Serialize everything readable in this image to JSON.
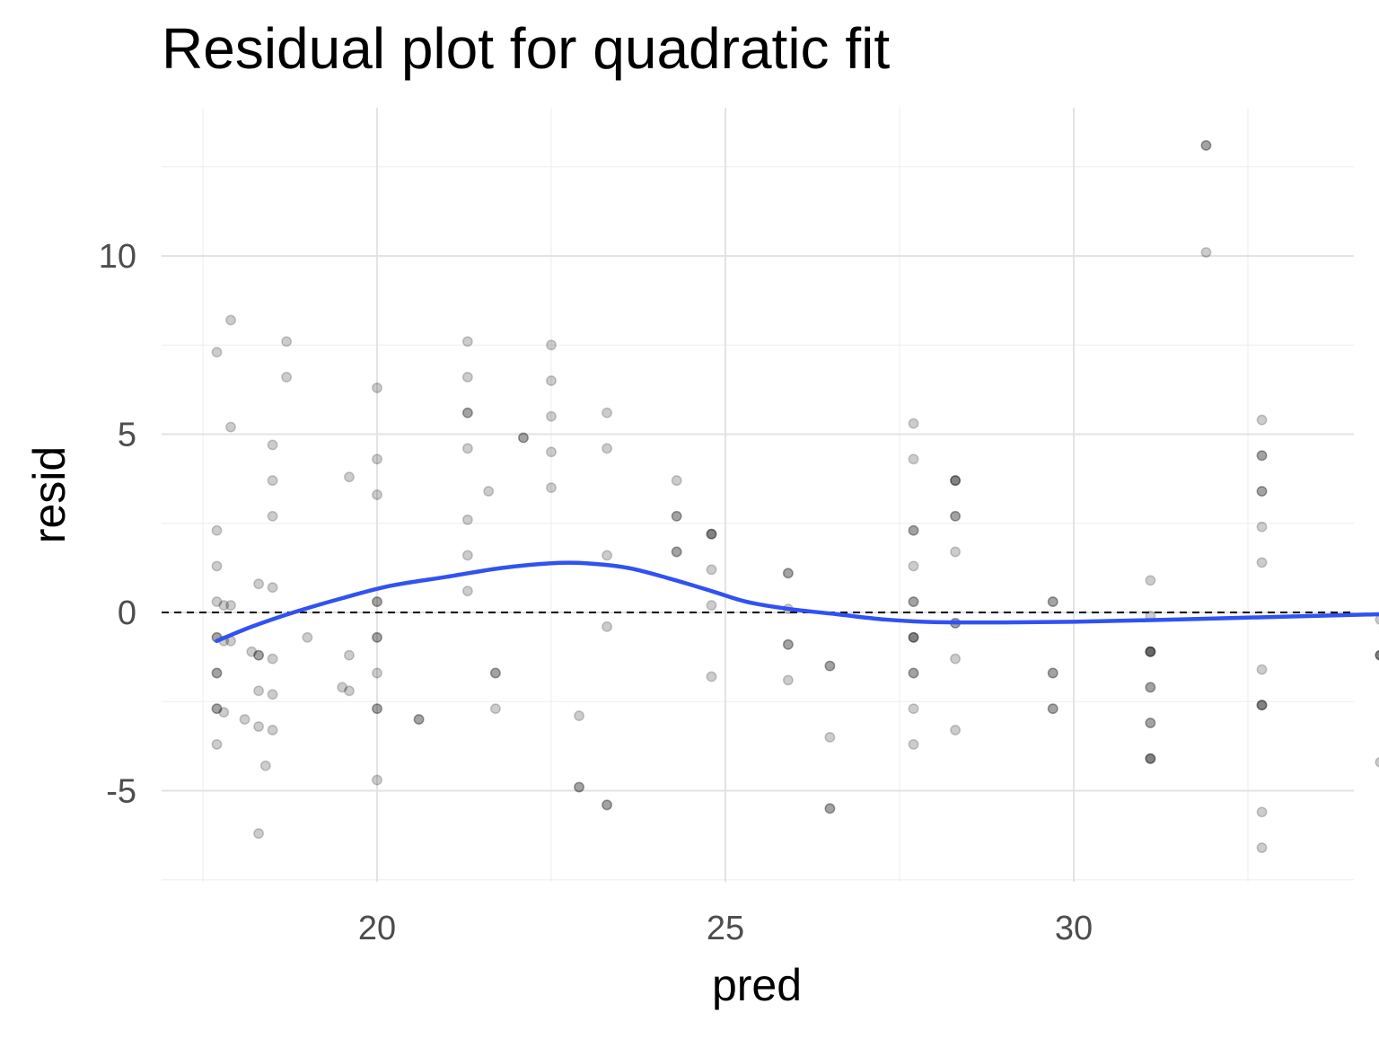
{
  "chart_data": {
    "type": "scatter",
    "title": "Residual plot for quadratic fit",
    "xlabel": "pred",
    "ylabel": "resid",
    "xlim": [
      16.9,
      34.0
    ],
    "ylim": [
      -7.5,
      14.0
    ],
    "x_ticks": [
      20,
      25,
      30
    ],
    "x_tick_labels": [
      "20",
      "25",
      "30"
    ],
    "y_ticks": [
      -5,
      0,
      5,
      10
    ],
    "y_tick_labels": [
      "-5",
      "0",
      "5",
      "10"
    ],
    "x_minor_ticks": [
      17.5,
      22.5,
      27.5,
      32.5
    ],
    "y_minor_ticks": [
      -7.5,
      -2.5,
      2.5,
      7.5,
      12.5
    ],
    "grid": true,
    "reference_line": {
      "y": 0,
      "style": "dashed",
      "color": "#000000"
    },
    "point_color": "#000000",
    "point_alpha": 0.2,
    "smooth_color": "#3152F2",
    "points": [
      {
        "x": 17.7,
        "y": 7.3
      },
      {
        "x": 17.7,
        "y": 2.3
      },
      {
        "x": 17.7,
        "y": 1.3
      },
      {
        "x": 17.7,
        "y": 0.3
      },
      {
        "x": 17.7,
        "y": -0.7
      },
      {
        "x": 17.7,
        "y": -0.7
      },
      {
        "x": 17.7,
        "y": -1.7
      },
      {
        "x": 17.7,
        "y": -1.7
      },
      {
        "x": 17.7,
        "y": -2.7
      },
      {
        "x": 17.7,
        "y": -2.7
      },
      {
        "x": 17.7,
        "y": -3.7
      },
      {
        "x": 17.8,
        "y": 0.2
      },
      {
        "x": 17.8,
        "y": -0.8
      },
      {
        "x": 17.8,
        "y": -2.8
      },
      {
        "x": 17.9,
        "y": 8.2
      },
      {
        "x": 17.9,
        "y": 5.2
      },
      {
        "x": 17.9,
        "y": 0.2
      },
      {
        "x": 17.9,
        "y": -0.8
      },
      {
        "x": 18.1,
        "y": -3.0
      },
      {
        "x": 18.3,
        "y": 0.8
      },
      {
        "x": 18.3,
        "y": -1.2
      },
      {
        "x": 18.3,
        "y": -1.2
      },
      {
        "x": 18.3,
        "y": -2.2
      },
      {
        "x": 18.3,
        "y": -3.2
      },
      {
        "x": 18.3,
        "y": -6.2
      },
      {
        "x": 18.2,
        "y": -1.1
      },
      {
        "x": 18.4,
        "y": -4.3
      },
      {
        "x": 18.5,
        "y": 4.7
      },
      {
        "x": 18.5,
        "y": 3.7
      },
      {
        "x": 18.5,
        "y": 2.7
      },
      {
        "x": 18.5,
        "y": 0.7
      },
      {
        "x": 18.5,
        "y": -1.3
      },
      {
        "x": 18.5,
        "y": -2.3
      },
      {
        "x": 18.5,
        "y": -3.3
      },
      {
        "x": 18.7,
        "y": 7.6
      },
      {
        "x": 18.7,
        "y": 6.6
      },
      {
        "x": 19.0,
        "y": -0.7
      },
      {
        "x": 19.5,
        "y": -2.1
      },
      {
        "x": 19.6,
        "y": -2.2
      },
      {
        "x": 19.6,
        "y": 3.8
      },
      {
        "x": 19.6,
        "y": -1.2
      },
      {
        "x": 20.0,
        "y": 6.3
      },
      {
        "x": 20.0,
        "y": 4.3
      },
      {
        "x": 20.0,
        "y": 3.3
      },
      {
        "x": 20.0,
        "y": 0.3
      },
      {
        "x": 20.0,
        "y": 0.3
      },
      {
        "x": 20.0,
        "y": -0.7
      },
      {
        "x": 20.0,
        "y": -0.7
      },
      {
        "x": 20.0,
        "y": -1.7
      },
      {
        "x": 20.0,
        "y": -2.7
      },
      {
        "x": 20.0,
        "y": -2.7
      },
      {
        "x": 20.0,
        "y": -4.7
      },
      {
        "x": 20.6,
        "y": -3.0
      },
      {
        "x": 20.6,
        "y": -3.0
      },
      {
        "x": 21.3,
        "y": 7.6
      },
      {
        "x": 21.3,
        "y": 6.6
      },
      {
        "x": 21.3,
        "y": 5.6
      },
      {
        "x": 21.3,
        "y": 5.6
      },
      {
        "x": 21.3,
        "y": 4.6
      },
      {
        "x": 21.3,
        "y": 2.6
      },
      {
        "x": 21.3,
        "y": 1.6
      },
      {
        "x": 21.3,
        "y": 0.6
      },
      {
        "x": 21.6,
        "y": 3.4
      },
      {
        "x": 21.7,
        "y": -1.7
      },
      {
        "x": 21.7,
        "y": -1.7
      },
      {
        "x": 21.7,
        "y": -2.7
      },
      {
        "x": 22.1,
        "y": 4.9
      },
      {
        "x": 22.1,
        "y": 4.9
      },
      {
        "x": 22.5,
        "y": 7.5
      },
      {
        "x": 22.5,
        "y": 6.5
      },
      {
        "x": 22.5,
        "y": 5.5
      },
      {
        "x": 22.5,
        "y": 4.5
      },
      {
        "x": 22.5,
        "y": 3.5
      },
      {
        "x": 22.9,
        "y": -2.9
      },
      {
        "x": 22.9,
        "y": -4.9
      },
      {
        "x": 22.9,
        "y": -4.9
      },
      {
        "x": 23.3,
        "y": 5.6
      },
      {
        "x": 23.3,
        "y": 4.6
      },
      {
        "x": 23.3,
        "y": 1.6
      },
      {
        "x": 23.3,
        "y": -0.4
      },
      {
        "x": 23.3,
        "y": -5.4
      },
      {
        "x": 23.3,
        "y": -5.4
      },
      {
        "x": 24.3,
        "y": 3.7
      },
      {
        "x": 24.3,
        "y": 2.7
      },
      {
        "x": 24.3,
        "y": 2.7
      },
      {
        "x": 24.3,
        "y": 1.7
      },
      {
        "x": 24.3,
        "y": 1.7
      },
      {
        "x": 24.8,
        "y": 2.2
      },
      {
        "x": 24.8,
        "y": 2.2
      },
      {
        "x": 24.8,
        "y": 2.2
      },
      {
        "x": 24.8,
        "y": 1.2
      },
      {
        "x": 24.8,
        "y": 0.2
      },
      {
        "x": 24.8,
        "y": -1.8
      },
      {
        "x": 25.9,
        "y": 1.1
      },
      {
        "x": 25.9,
        "y": 1.1
      },
      {
        "x": 25.9,
        "y": 0.1
      },
      {
        "x": 25.9,
        "y": -0.9
      },
      {
        "x": 25.9,
        "y": -0.9
      },
      {
        "x": 25.9,
        "y": -1.9
      },
      {
        "x": 26.5,
        "y": -1.5
      },
      {
        "x": 26.5,
        "y": -1.5
      },
      {
        "x": 26.5,
        "y": -3.5
      },
      {
        "x": 26.5,
        "y": -5.5
      },
      {
        "x": 26.5,
        "y": -5.5
      },
      {
        "x": 27.7,
        "y": 5.3
      },
      {
        "x": 27.7,
        "y": 4.3
      },
      {
        "x": 27.7,
        "y": 2.3
      },
      {
        "x": 27.7,
        "y": 2.3
      },
      {
        "x": 27.7,
        "y": 1.3
      },
      {
        "x": 27.7,
        "y": 0.3
      },
      {
        "x": 27.7,
        "y": 0.3
      },
      {
        "x": 27.7,
        "y": -0.7
      },
      {
        "x": 27.7,
        "y": -0.7
      },
      {
        "x": 27.7,
        "y": -0.7
      },
      {
        "x": 27.7,
        "y": -1.7
      },
      {
        "x": 27.7,
        "y": -1.7
      },
      {
        "x": 27.7,
        "y": -2.7
      },
      {
        "x": 27.7,
        "y": -3.7
      },
      {
        "x": 28.3,
        "y": 3.7
      },
      {
        "x": 28.3,
        "y": 3.7
      },
      {
        "x": 28.3,
        "y": 3.7
      },
      {
        "x": 28.3,
        "y": 2.7
      },
      {
        "x": 28.3,
        "y": 2.7
      },
      {
        "x": 28.3,
        "y": 1.7
      },
      {
        "x": 28.3,
        "y": -0.3
      },
      {
        "x": 28.3,
        "y": -0.3
      },
      {
        "x": 28.3,
        "y": -1.3
      },
      {
        "x": 28.3,
        "y": -3.3
      },
      {
        "x": 29.7,
        "y": 0.3
      },
      {
        "x": 29.7,
        "y": 0.3
      },
      {
        "x": 29.7,
        "y": -1.7
      },
      {
        "x": 29.7,
        "y": -1.7
      },
      {
        "x": 29.7,
        "y": -2.7
      },
      {
        "x": 29.7,
        "y": -2.7
      },
      {
        "x": 31.1,
        "y": 0.9
      },
      {
        "x": 31.1,
        "y": -0.1
      },
      {
        "x": 31.1,
        "y": -1.1
      },
      {
        "x": 31.1,
        "y": -1.1
      },
      {
        "x": 31.1,
        "y": -1.1
      },
      {
        "x": 31.1,
        "y": -1.1
      },
      {
        "x": 31.1,
        "y": -2.1
      },
      {
        "x": 31.1,
        "y": -2.1
      },
      {
        "x": 31.1,
        "y": -3.1
      },
      {
        "x": 31.1,
        "y": -3.1
      },
      {
        "x": 31.1,
        "y": -4.1
      },
      {
        "x": 31.1,
        "y": -4.1
      },
      {
        "x": 31.1,
        "y": -4.1
      },
      {
        "x": 31.9,
        "y": 13.1
      },
      {
        "x": 31.9,
        "y": 13.1
      },
      {
        "x": 31.9,
        "y": 10.1
      },
      {
        "x": 32.7,
        "y": 5.4
      },
      {
        "x": 32.7,
        "y": 4.4
      },
      {
        "x": 32.7,
        "y": 4.4
      },
      {
        "x": 32.7,
        "y": 3.4
      },
      {
        "x": 32.7,
        "y": 3.4
      },
      {
        "x": 32.7,
        "y": 2.4
      },
      {
        "x": 32.7,
        "y": 1.4
      },
      {
        "x": 32.7,
        "y": -1.6
      },
      {
        "x": 32.7,
        "y": -2.6
      },
      {
        "x": 32.7,
        "y": -2.6
      },
      {
        "x": 32.7,
        "y": -2.6
      },
      {
        "x": 32.7,
        "y": -5.6
      },
      {
        "x": 32.7,
        "y": -6.6
      },
      {
        "x": 34.4,
        "y": -0.2
      },
      {
        "x": 34.4,
        "y": -1.2
      },
      {
        "x": 34.4,
        "y": -1.2
      },
      {
        "x": 34.4,
        "y": -1.2
      },
      {
        "x": 34.4,
        "y": -4.2
      }
    ],
    "smooth_line": [
      {
        "x": 17.7,
        "y": -0.8
      },
      {
        "x": 18.2,
        "y": -0.4
      },
      {
        "x": 18.8,
        "y": 0.0
      },
      {
        "x": 19.5,
        "y": 0.4
      },
      {
        "x": 20.2,
        "y": 0.75
      },
      {
        "x": 21.0,
        "y": 1.0
      },
      {
        "x": 21.8,
        "y": 1.25
      },
      {
        "x": 22.5,
        "y": 1.38
      },
      {
        "x": 23.0,
        "y": 1.38
      },
      {
        "x": 23.6,
        "y": 1.25
      },
      {
        "x": 24.2,
        "y": 0.95
      },
      {
        "x": 24.8,
        "y": 0.6
      },
      {
        "x": 25.3,
        "y": 0.3
      },
      {
        "x": 25.9,
        "y": 0.1
      },
      {
        "x": 26.6,
        "y": -0.05
      },
      {
        "x": 27.3,
        "y": -0.2
      },
      {
        "x": 28.0,
        "y": -0.27
      },
      {
        "x": 29.0,
        "y": -0.28
      },
      {
        "x": 30.0,
        "y": -0.26
      },
      {
        "x": 31.0,
        "y": -0.22
      },
      {
        "x": 32.0,
        "y": -0.17
      },
      {
        "x": 33.0,
        "y": -0.12
      },
      {
        "x": 34.4,
        "y": -0.05
      }
    ]
  }
}
